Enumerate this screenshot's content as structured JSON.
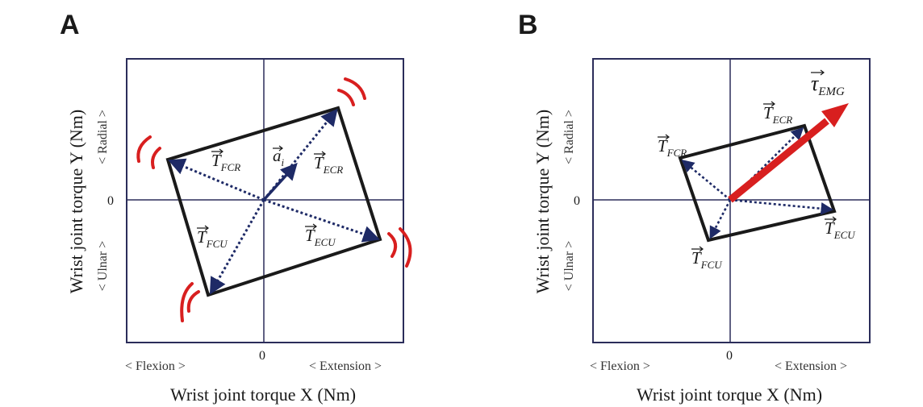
{
  "panel_a": {
    "label": "A",
    "x_axis_title": "Wrist joint torque X (Nm)",
    "y_axis_title": "Wrist joint torque Y (Nm)",
    "x_neg_label": "< Flexion >",
    "x_pos_label": "< Extension >",
    "y_pos_label": "< Radial >",
    "y_neg_label": "< Ulnar >",
    "x_zero": "0",
    "y_zero": "0",
    "vectors": {
      "fcr": {
        "base": "T",
        "sub": "FCR"
      },
      "ecr": {
        "base": "T",
        "sub": "ECR"
      },
      "fcu": {
        "base": "T",
        "sub": "FCU"
      },
      "ecu": {
        "base": "T",
        "sub": "ECU"
      },
      "a": {
        "base": "a",
        "sub": "i"
      }
    }
  },
  "panel_b": {
    "label": "B",
    "x_axis_title": "Wrist joint torque X (Nm)",
    "y_axis_title": "Wrist joint torque Y (Nm)",
    "x_neg_label": "< Flexion >",
    "x_pos_label": "< Extension >",
    "y_pos_label": "< Radial >",
    "y_neg_label": "< Ulnar >",
    "x_zero": "0",
    "y_zero": "0",
    "vectors": {
      "fcr": {
        "base": "T",
        "sub": "FCR"
      },
      "ecr": {
        "base": "T",
        "sub": "ECR"
      },
      "fcu": {
        "base": "T",
        "sub": "FCU"
      },
      "ecu": {
        "base": "T",
        "sub": "ECU"
      },
      "emg": {
        "base": "τ",
        "sub": "EMG"
      }
    }
  },
  "colors": {
    "axis": "#2b2d5a",
    "frame": "#1a1a1a",
    "vector_dotted": "#1e2a66",
    "emg_vector": "#d81f1f",
    "vibration_arc": "#d81f1f"
  }
}
